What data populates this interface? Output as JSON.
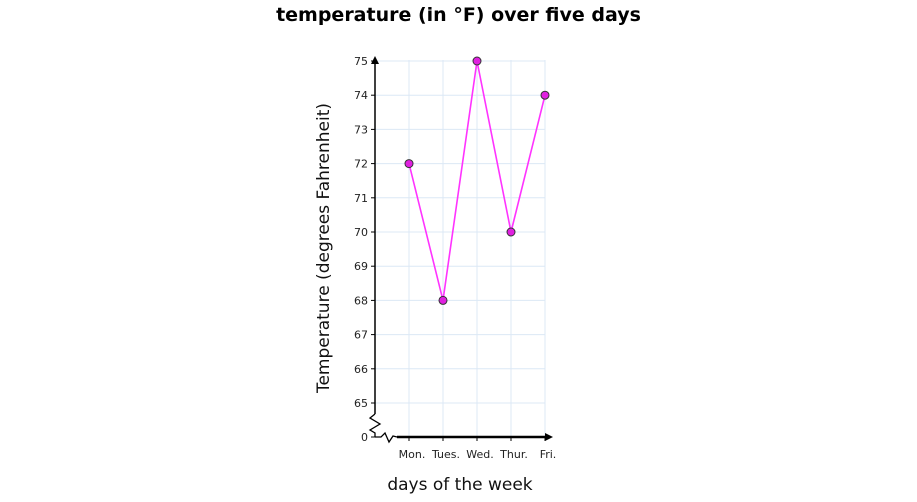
{
  "chart_data": {
    "type": "line",
    "title": "temperature (in °F) over five days",
    "xlabel": "days of the week",
    "ylabel": "Temperature (degrees Fahrenheit)",
    "categories": [
      "Mon.",
      "Tues.",
      "Wed.",
      "Thur.",
      "Fri."
    ],
    "series": [
      {
        "values": [
          72,
          68,
          75,
          70,
          74
        ]
      }
    ],
    "ylim": [
      65,
      75
    ],
    "y_axis_break": true,
    "y_ticks": [
      0,
      65,
      66,
      67,
      68,
      69,
      70,
      71,
      72,
      73,
      74,
      75
    ],
    "grid": true,
    "colors": {
      "line": "#ff33ff",
      "marker_fill": "#e020e0",
      "marker_stroke": "#333333",
      "grid": "#dce8f5",
      "axis": "#000000"
    }
  }
}
